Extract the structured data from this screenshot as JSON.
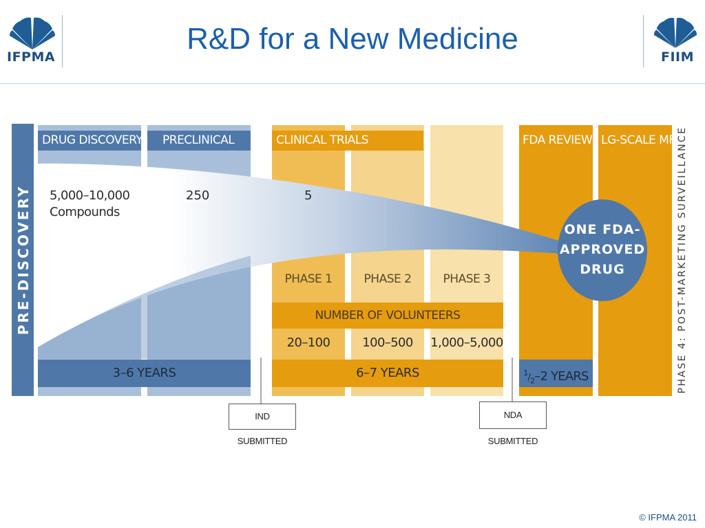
{
  "slide": {
    "title": "R&D for a New Medicine",
    "copyright": "© IFPMA 2011"
  },
  "logos": {
    "left": {
      "text": "IFPMA",
      "icon": "fan-leaf-icon"
    },
    "right": {
      "text": "FIIM",
      "icon": "fan-leaf-icon"
    }
  },
  "diagram": {
    "pre_discovery_label": "PRE-DISCOVERY",
    "post_marketing_label": "PHASE 4: POST-MARKETING SURVEILLANCE",
    "stages": [
      {
        "label": "DRUG DISCOVERY"
      },
      {
        "label": "PRECLINICAL"
      },
      {
        "label": "CLINICAL TRIALS"
      },
      {
        "label": "FDA REVIEW"
      },
      {
        "label": "LG-SCALE MFG"
      }
    ],
    "counts": {
      "discovery_value": "5,000–10,000",
      "discovery_unit": "Compounds",
      "preclinical_value": "250",
      "clinical_value": "5"
    },
    "outcome": {
      "line1": "ONE FDA-",
      "line2": "APPROVED",
      "line3": "DRUG"
    },
    "phases": [
      {
        "label": "PHASE 1",
        "volunteers": "20–100"
      },
      {
        "label": "PHASE 2",
        "volunteers": "100–500"
      },
      {
        "label": "PHASE 3",
        "volunteers": "1,000–5,000"
      }
    ],
    "volunteers_header": "NUMBER OF VOLUNTEERS",
    "durations": {
      "discovery_preclinical": "3–6 YEARS",
      "clinical": "6–7 YEARS",
      "review_num": "1",
      "review_den": "2",
      "review_rest": "–2 YEARS"
    },
    "milestones": {
      "ind": "IND SUBMITTED",
      "nda": "NDA SUBMITTED"
    },
    "colors": {
      "blue_dark": "#4f78a9",
      "blue_light": "#a9bfd9",
      "orange": "#e59c0e",
      "orange_mid": "#f0bd55",
      "orange_light": "#f5d48d",
      "orange_pale": "#f8e1ab",
      "title_blue": "#1b5fad"
    }
  }
}
